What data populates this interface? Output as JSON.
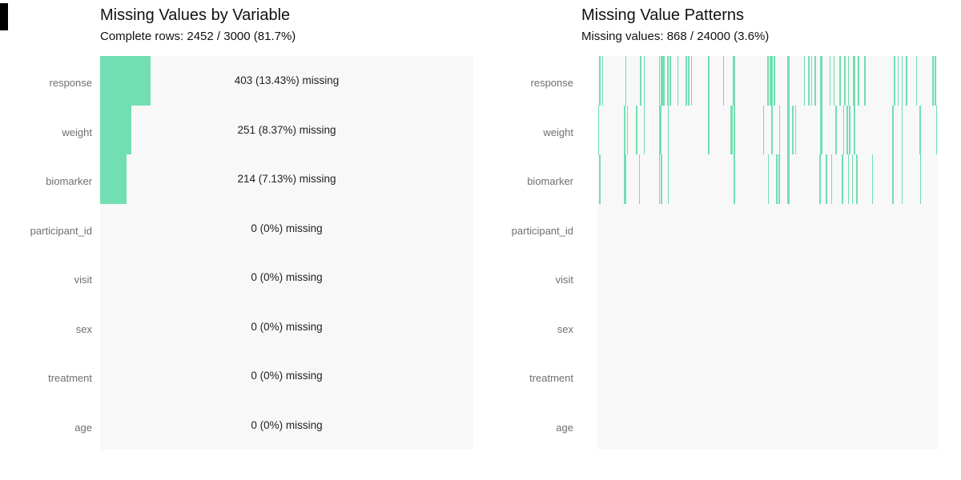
{
  "colors": {
    "accent": "#72deb3",
    "panel_background": "#f8f8f8",
    "axis_label": "#6f6f6f",
    "title_text": "#111111",
    "annotation_text": "#222222",
    "corner_artifact": "#000000"
  },
  "chart_data": [
    {
      "id": "missing-values-by-variable",
      "type": "bar",
      "orientation": "horizontal",
      "title": "Missing Values by Variable",
      "subtitle": "Complete rows: 2452 / 3000 (81.7%)",
      "categories": [
        "response",
        "weight",
        "biomarker",
        "participant_id",
        "visit",
        "sex",
        "treatment",
        "age"
      ],
      "values": [
        403,
        251,
        214,
        0,
        0,
        0,
        0,
        0
      ],
      "bar_labels": [
        "403 (13.43%) missing",
        "251 (8.37%) missing",
        "214 (7.13%) missing",
        "0 (0%) missing",
        "0 (0%) missing",
        "0 (0%) missing",
        "0 (0%) missing",
        "0 (0%) missing"
      ],
      "xlabel": "",
      "ylabel": "",
      "xlim": [
        0,
        3000
      ],
      "grid": false,
      "legend": "none"
    },
    {
      "id": "missing-value-patterns",
      "type": "heatmap",
      "title": "Missing Value Patterns",
      "subtitle": "Missing values: 868 / 24000 (3.6%)",
      "categories": [
        "response",
        "weight",
        "biomarker",
        "participant_id",
        "visit",
        "sex",
        "treatment",
        "age"
      ],
      "note": "each vertical tick marks a missing observation at that row position (x = row index 0-3000 as % of width)",
      "series": [
        {
          "name": "response",
          "ticks_pct": [
            0.5,
            1.4,
            8.2,
            12.5,
            13.6,
            18.1,
            18.6,
            19.1,
            19.5,
            20.5,
            21.2,
            23.5,
            25.9,
            26.6,
            27.5,
            32.5,
            36.9,
            49.9,
            50.6,
            51.1,
            51.8,
            60.7,
            61.9,
            62.8,
            63.8,
            68.2,
            69.4,
            71.1,
            72.5,
            73.6,
            75.1,
            75.5,
            76.5,
            78.4,
            87.1,
            88.2,
            89.4,
            90.6,
            93.6,
            98.4,
            99.1
          ],
          "wide_ticks_pct": [
            39.8,
            55.8,
            65.4
          ]
        },
        {
          "name": "weight",
          "ticks_pct": [
            0.2,
            7.8,
            8.7,
            11.3,
            13.6,
            18.1,
            18.4,
            20.7,
            32.5,
            40.0,
            48.7,
            51.1,
            53.4,
            57.2,
            58.1,
            69.9,
            72.2,
            73.2,
            73.9,
            75.3,
            86.6,
            89.4,
            94.6,
            99.5
          ],
          "wide_ticks_pct": [
            39.1,
            55.8,
            65.4
          ]
        },
        {
          "name": "biomarker",
          "ticks_pct": [
            0.5,
            7.8,
            8.2,
            12.2,
            18.1,
            18.6,
            20.7,
            40.0,
            50.1,
            52.5,
            53.2,
            65.2,
            67.1,
            68.7,
            71.8,
            73.6,
            74.8,
            76.0,
            80.7,
            86.6,
            89.4,
            94.8
          ],
          "wide_ticks_pct": [
            55.8
          ]
        },
        {
          "name": "participant_id",
          "ticks_pct": [],
          "wide_ticks_pct": []
        },
        {
          "name": "visit",
          "ticks_pct": [],
          "wide_ticks_pct": []
        },
        {
          "name": "sex",
          "ticks_pct": [],
          "wide_ticks_pct": []
        },
        {
          "name": "treatment",
          "ticks_pct": [],
          "wide_ticks_pct": []
        },
        {
          "name": "age",
          "ticks_pct": [],
          "wide_ticks_pct": []
        }
      ]
    }
  ]
}
